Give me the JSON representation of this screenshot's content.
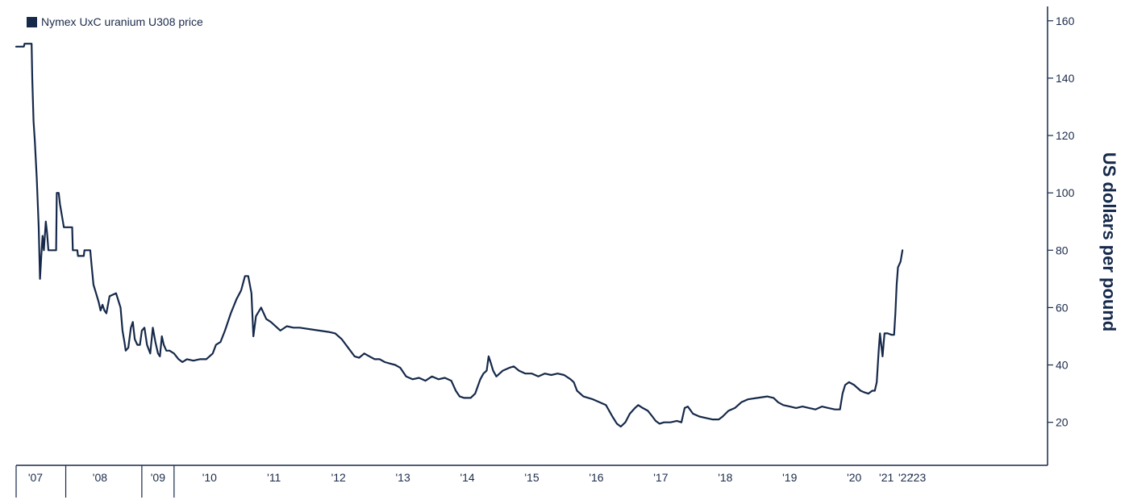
{
  "colors": {
    "series": "#16294a",
    "axis": "#16294a"
  },
  "chart_data": {
    "type": "line",
    "title": "",
    "xlabel": "",
    "ylabel": "US dollars per pound",
    "ylim": [
      5,
      165
    ],
    "xlim": [
      2007.0,
      2023.0
    ],
    "y_ticks": [
      20,
      40,
      60,
      80,
      100,
      120,
      140,
      160
    ],
    "x_tick_labels": [
      {
        "label": "'07",
        "x": 2007.3
      },
      {
        "label": "'08",
        "x": 2008.3
      },
      {
        "label": "'09",
        "x": 2009.2
      },
      {
        "label": "'10",
        "x": 2010.0
      },
      {
        "label": "'11",
        "x": 2011.0
      },
      {
        "label": "'12",
        "x": 2012.0
      },
      {
        "label": "'13",
        "x": 2013.0
      },
      {
        "label": "'14",
        "x": 2014.0
      },
      {
        "label": "'15",
        "x": 2015.0
      },
      {
        "label": "'16",
        "x": 2016.0
      },
      {
        "label": "'17",
        "x": 2017.0
      },
      {
        "label": "'18",
        "x": 2018.0
      },
      {
        "label": "'19",
        "x": 2019.0
      },
      {
        "label": "'20",
        "x": 2020.0
      },
      {
        "label": "'21",
        "x": 2020.5
      },
      {
        "label": "'22",
        "x": 2020.8
      },
      {
        "label": "'23",
        "x": 2021.0
      }
    ],
    "x_tick_marks": [
      2007.77,
      2008.95,
      2009.45
    ],
    "legend": {
      "position": "top-left"
    },
    "grid": false,
    "series": [
      {
        "name": "Nymex UxC uranium U308 price",
        "points": [
          [
            2007.0,
            151
          ],
          [
            2007.12,
            151
          ],
          [
            2007.13,
            152
          ],
          [
            2007.24,
            152
          ],
          [
            2007.25,
            140
          ],
          [
            2007.27,
            125
          ],
          [
            2007.29,
            118
          ],
          [
            2007.32,
            105
          ],
          [
            2007.35,
            88
          ],
          [
            2007.37,
            70
          ],
          [
            2007.39,
            78
          ],
          [
            2007.41,
            85
          ],
          [
            2007.43,
            80
          ],
          [
            2007.46,
            90
          ],
          [
            2007.48,
            86
          ],
          [
            2007.5,
            80
          ],
          [
            2007.58,
            80
          ],
          [
            2007.62,
            80
          ],
          [
            2007.63,
            100
          ],
          [
            2007.66,
            100
          ],
          [
            2007.68,
            96
          ],
          [
            2007.71,
            92
          ],
          [
            2007.74,
            88
          ],
          [
            2007.87,
            88
          ],
          [
            2007.88,
            80
          ],
          [
            2007.95,
            80
          ],
          [
            2007.96,
            78
          ],
          [
            2008.05,
            78
          ],
          [
            2008.06,
            80
          ],
          [
            2008.15,
            80
          ],
          [
            2008.17,
            75
          ],
          [
            2008.2,
            68
          ],
          [
            2008.24,
            65
          ],
          [
            2008.28,
            62
          ],
          [
            2008.31,
            59
          ],
          [
            2008.34,
            61
          ],
          [
            2008.37,
            59
          ],
          [
            2008.4,
            58
          ],
          [
            2008.45,
            64
          ],
          [
            2008.55,
            65
          ],
          [
            2008.62,
            60
          ],
          [
            2008.65,
            52
          ],
          [
            2008.68,
            48
          ],
          [
            2008.7,
            45
          ],
          [
            2008.74,
            46
          ],
          [
            2008.78,
            53
          ],
          [
            2008.81,
            55
          ],
          [
            2008.84,
            49
          ],
          [
            2008.88,
            47
          ],
          [
            2008.92,
            47
          ],
          [
            2008.95,
            52
          ],
          [
            2008.99,
            53
          ],
          [
            2009.03,
            47
          ],
          [
            2009.08,
            44
          ],
          [
            2009.12,
            53
          ],
          [
            2009.16,
            48
          ],
          [
            2009.2,
            44
          ],
          [
            2009.23,
            43
          ],
          [
            2009.26,
            50
          ],
          [
            2009.29,
            47
          ],
          [
            2009.33,
            45
          ],
          [
            2009.38,
            45
          ],
          [
            2009.45,
            44
          ],
          [
            2009.52,
            42
          ],
          [
            2009.58,
            41
          ],
          [
            2009.65,
            42
          ],
          [
            2009.75,
            41.5
          ],
          [
            2009.85,
            42
          ],
          [
            2009.95,
            42
          ],
          [
            2010.05,
            44
          ],
          [
            2010.1,
            47
          ],
          [
            2010.17,
            48
          ],
          [
            2010.24,
            52
          ],
          [
            2010.33,
            58
          ],
          [
            2010.42,
            63
          ],
          [
            2010.49,
            66
          ],
          [
            2010.55,
            71
          ],
          [
            2010.6,
            71
          ],
          [
            2010.65,
            65
          ],
          [
            2010.68,
            50
          ],
          [
            2010.72,
            57
          ],
          [
            2010.8,
            60
          ],
          [
            2010.88,
            56
          ],
          [
            2010.95,
            55
          ],
          [
            2011.05,
            53
          ],
          [
            2011.1,
            52
          ],
          [
            2011.2,
            53.5
          ],
          [
            2011.3,
            53
          ],
          [
            2011.4,
            53
          ],
          [
            2011.55,
            52.5
          ],
          [
            2011.7,
            52
          ],
          [
            2011.85,
            51.5
          ],
          [
            2011.95,
            51
          ],
          [
            2012.05,
            49
          ],
          [
            2012.15,
            46
          ],
          [
            2012.25,
            43
          ],
          [
            2012.32,
            42.5
          ],
          [
            2012.4,
            44
          ],
          [
            2012.48,
            43
          ],
          [
            2012.56,
            42
          ],
          [
            2012.64,
            42
          ],
          [
            2012.72,
            41
          ],
          [
            2012.8,
            40.5
          ],
          [
            2012.88,
            40
          ],
          [
            2012.96,
            39
          ],
          [
            2013.05,
            36
          ],
          [
            2013.15,
            35
          ],
          [
            2013.25,
            35.5
          ],
          [
            2013.35,
            34.5
          ],
          [
            2013.45,
            36
          ],
          [
            2013.55,
            35
          ],
          [
            2013.65,
            35.5
          ],
          [
            2013.75,
            34.5
          ],
          [
            2013.82,
            31
          ],
          [
            2013.88,
            29
          ],
          [
            2013.95,
            28.5
          ],
          [
            2014.05,
            28.5
          ],
          [
            2014.12,
            30
          ],
          [
            2014.2,
            35
          ],
          [
            2014.25,
            37
          ],
          [
            2014.3,
            38
          ],
          [
            2014.33,
            43
          ],
          [
            2014.36,
            41
          ],
          [
            2014.4,
            38
          ],
          [
            2014.45,
            36
          ],
          [
            2014.55,
            38
          ],
          [
            2014.65,
            39
          ],
          [
            2014.72,
            39.5
          ],
          [
            2014.8,
            38
          ],
          [
            2014.9,
            37
          ],
          [
            2015.0,
            37
          ],
          [
            2015.1,
            36
          ],
          [
            2015.2,
            37
          ],
          [
            2015.3,
            36.5
          ],
          [
            2015.4,
            37
          ],
          [
            2015.5,
            36.5
          ],
          [
            2015.6,
            35
          ],
          [
            2015.65,
            34
          ],
          [
            2015.7,
            31
          ],
          [
            2015.8,
            29
          ],
          [
            2015.95,
            28
          ],
          [
            2016.05,
            27
          ],
          [
            2016.15,
            26
          ],
          [
            2016.25,
            22
          ],
          [
            2016.32,
            19.5
          ],
          [
            2016.38,
            18.5
          ],
          [
            2016.45,
            20
          ],
          [
            2016.52,
            23
          ],
          [
            2016.6,
            25
          ],
          [
            2016.65,
            26
          ],
          [
            2016.72,
            25
          ],
          [
            2016.8,
            24
          ],
          [
            2016.87,
            22
          ],
          [
            2016.92,
            20.5
          ],
          [
            2016.98,
            19.5
          ],
          [
            2017.05,
            20
          ],
          [
            2017.15,
            20
          ],
          [
            2017.25,
            20.5
          ],
          [
            2017.32,
            20
          ],
          [
            2017.37,
            25
          ],
          [
            2017.42,
            25.5
          ],
          [
            2017.5,
            23
          ],
          [
            2017.6,
            22
          ],
          [
            2017.7,
            21.5
          ],
          [
            2017.8,
            21
          ],
          [
            2017.9,
            21
          ],
          [
            2017.96,
            22
          ],
          [
            2018.05,
            24
          ],
          [
            2018.15,
            25
          ],
          [
            2018.25,
            27
          ],
          [
            2018.35,
            28
          ],
          [
            2018.5,
            28.5
          ],
          [
            2018.65,
            29
          ],
          [
            2018.75,
            28.5
          ],
          [
            2018.82,
            27
          ],
          [
            2018.9,
            26
          ],
          [
            2019.0,
            25.5
          ],
          [
            2019.1,
            25
          ],
          [
            2019.2,
            25.5
          ],
          [
            2019.3,
            25
          ],
          [
            2019.4,
            24.5
          ],
          [
            2019.5,
            25.5
          ],
          [
            2019.6,
            25
          ],
          [
            2019.7,
            24.5
          ],
          [
            2019.78,
            24.5
          ],
          [
            2019.82,
            30
          ],
          [
            2019.86,
            33
          ],
          [
            2019.92,
            34
          ],
          [
            2020.0,
            33
          ],
          [
            2020.05,
            32
          ],
          [
            2020.1,
            31
          ],
          [
            2020.15,
            30.5
          ],
          [
            2020.22,
            30
          ],
          [
            2020.28,
            31
          ],
          [
            2020.32,
            31
          ],
          [
            2020.35,
            34
          ],
          [
            2020.38,
            45
          ],
          [
            2020.4,
            51
          ],
          [
            2020.44,
            43
          ],
          [
            2020.47,
            51
          ],
          [
            2020.52,
            51
          ],
          [
            2020.58,
            50.5
          ],
          [
            2020.62,
            50.5
          ],
          [
            2020.64,
            58
          ],
          [
            2020.66,
            68
          ],
          [
            2020.68,
            74
          ],
          [
            2020.72,
            76
          ],
          [
            2020.75,
            80
          ]
        ]
      }
    ]
  }
}
